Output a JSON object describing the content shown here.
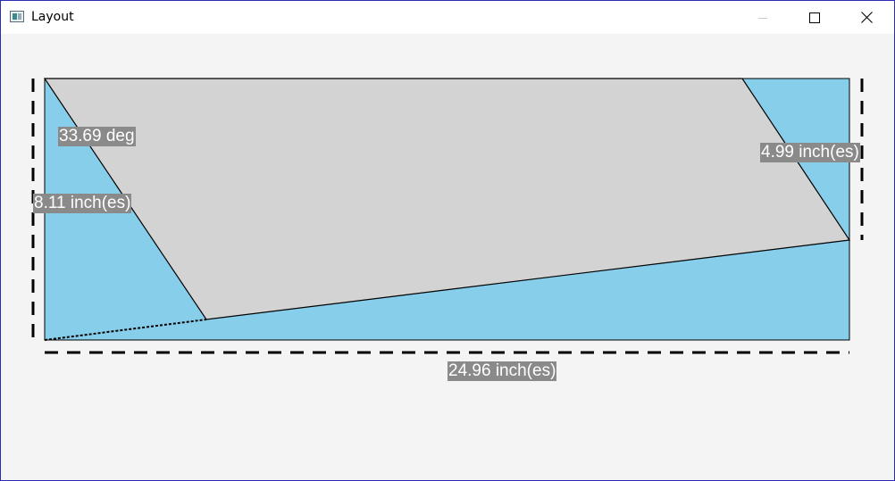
{
  "window": {
    "title": "Layout",
    "border_color": "#2b2bb3",
    "controls": {
      "minimize_icon": "minimize-icon",
      "maximize_icon": "maximize-icon",
      "close_icon": "close-icon"
    }
  },
  "drawing": {
    "colors": {
      "background": "#f4f4f4",
      "outer_rect_fill": "#87ceeb",
      "inner_shape_fill": "#d3d3d3",
      "label_background": "#8a8a8a",
      "label_text": "#ffffff",
      "dimension_line": "#000000"
    },
    "labels": {
      "angle": "33.69 deg",
      "left_height": "8.11 inch(es)",
      "right_height": "4.99 inch(es)",
      "bottom_width": "24.96 inch(es)"
    }
  }
}
